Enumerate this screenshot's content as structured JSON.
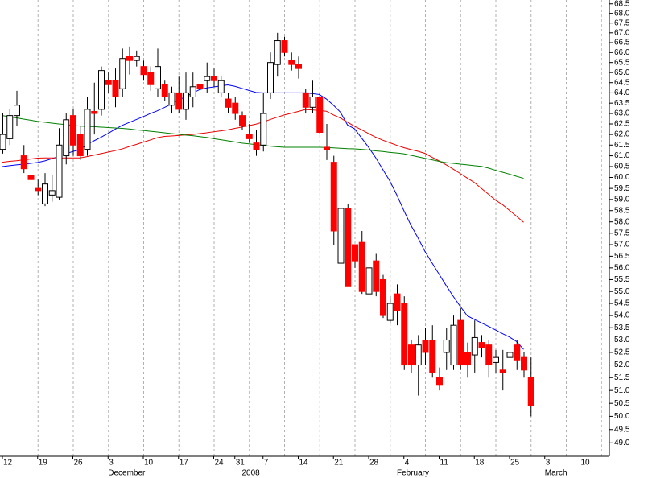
{
  "chart_data": {
    "type": "candlestick",
    "log_scale": true,
    "ylim": [
      48.5,
      68.7
    ],
    "yticks": [
      {
        "value": 49,
        "label": "49.0"
      },
      {
        "value": 49.5,
        "label": "49.5"
      },
      {
        "value": 50,
        "label": "50.0"
      },
      {
        "value": 50.5,
        "label": "50.5"
      },
      {
        "value": 51,
        "label": "51.0"
      },
      {
        "value": 51.5,
        "label": "51.5"
      },
      {
        "value": 52,
        "label": "52.0"
      },
      {
        "value": 52.5,
        "label": "52.5"
      },
      {
        "value": 53,
        "label": "53.0"
      },
      {
        "value": 53.5,
        "label": "53.5"
      },
      {
        "value": 54,
        "label": "54.0"
      },
      {
        "value": 54.5,
        "label": "54.5"
      },
      {
        "value": 55,
        "label": "55.0"
      },
      {
        "value": 55.5,
        "label": "55.5"
      },
      {
        "value": 56,
        "label": "56.0"
      },
      {
        "value": 56.5,
        "label": "56.5"
      },
      {
        "value": 57,
        "label": "57.0"
      },
      {
        "value": 57.5,
        "label": "57.5"
      },
      {
        "value": 58,
        "label": "58.0"
      },
      {
        "value": 58.5,
        "label": "58.5"
      },
      {
        "value": 59,
        "label": "59.0"
      },
      {
        "value": 59.5,
        "label": "59.5"
      },
      {
        "value": 60,
        "label": "60.0"
      },
      {
        "value": 60.5,
        "label": "60.5"
      },
      {
        "value": 61,
        "label": "61.0"
      },
      {
        "value": 61.5,
        "label": "61.5"
      },
      {
        "value": 62,
        "label": "62.0"
      },
      {
        "value": 62.5,
        "label": "62.5"
      },
      {
        "value": 63,
        "label": "63.0"
      },
      {
        "value": 63.5,
        "label": "63.5"
      },
      {
        "value": 64,
        "label": "64.0"
      },
      {
        "value": 64.5,
        "label": "64.5"
      },
      {
        "value": 65,
        "label": "65.0"
      },
      {
        "value": 65.5,
        "label": "65.5"
      },
      {
        "value": 66,
        "label": "66.0"
      },
      {
        "value": 66.5,
        "label": "66.5"
      },
      {
        "value": 67,
        "label": "67.0"
      },
      {
        "value": 67.5,
        "label": "67.5"
      },
      {
        "value": 68,
        "label": "68.0"
      },
      {
        "value": 68.5,
        "label": "68.5"
      }
    ],
    "categories": [
      "12",
      null,
      null,
      null,
      null,
      "19",
      null,
      null,
      null,
      null,
      "26",
      null,
      null,
      null,
      null,
      "3",
      null,
      null,
      null,
      null,
      "10",
      null,
      null,
      null,
      null,
      "17",
      null,
      null,
      null,
      null,
      "24",
      null,
      null,
      "31",
      null,
      null,
      null,
      "7",
      null,
      null,
      null,
      null,
      "14",
      null,
      null,
      null,
      null,
      "21",
      null,
      null,
      null,
      null,
      "28",
      null,
      null,
      null,
      null,
      "4",
      null,
      null,
      null,
      null,
      "11",
      null,
      null,
      null,
      null,
      "18",
      null,
      null,
      null,
      null,
      "25",
      null,
      null,
      null,
      null,
      "3",
      null,
      null,
      null,
      null,
      "10",
      null,
      null,
      null
    ],
    "month_categories": [
      null,
      null,
      null,
      null,
      null,
      null,
      null,
      null,
      null,
      null,
      null,
      null,
      null,
      null,
      null,
      "December",
      null,
      null,
      null,
      null,
      null,
      null,
      null,
      null,
      null,
      null,
      null,
      null,
      null,
      null,
      null,
      null,
      null,
      null,
      "2008",
      null,
      null,
      null,
      null,
      null,
      null,
      null,
      null,
      null,
      null,
      null,
      null,
      null,
      null,
      null,
      null,
      null,
      null,
      null,
      null,
      null,
      "February",
      null,
      null,
      null,
      null,
      null,
      null,
      null,
      null,
      null,
      null,
      null,
      null,
      null,
      null,
      null,
      null,
      null,
      null,
      null,
      null,
      "March",
      null,
      null,
      null,
      null,
      null,
      null,
      null,
      null
    ],
    "open": [
      61.3,
      61.8,
      62.9,
      61.0,
      60.1,
      59.5,
      58.8,
      59.2,
      59.1,
      61.0,
      62.9,
      62.0,
      61.3,
      63.1,
      63.2,
      64.6,
      64.6,
      64.2,
      65.8,
      65.6,
      65.3,
      65.0,
      64.2,
      64.4,
      63.4,
      64.0,
      63.2,
      63.8,
      64.4,
      64.6,
      64.8,
      64.0,
      63.7,
      63.5,
      62.9,
      62.0,
      61.6,
      61.5,
      64.0,
      65.4,
      66.6,
      65.6,
      65.4,
      64.0,
      63.3,
      63.8,
      61.4,
      60.7,
      56.2,
      58.6,
      57.0,
      57.1,
      54.9,
      56.3,
      55.5,
      53.8,
      54.9,
      54.5,
      52.8,
      52.0,
      53.0,
      53.0,
      51.5,
      52.5,
      52.0,
      53.8,
      52.5,
      52.4,
      52.9,
      52.8,
      52.1,
      51.8,
      52.3,
      52.8,
      52.3,
      51.5,
      null,
      null,
      null,
      null,
      null,
      null,
      null,
      null,
      null,
      null
    ],
    "high": [
      63.0,
      63.2,
      64.1,
      61.5,
      60.4,
      59.9,
      60.2,
      60.1,
      62.3,
      63.0,
      63.2,
      62.4,
      63.8,
      64.5,
      65.3,
      65.0,
      65.2,
      66.2,
      66.3,
      66.1,
      65.6,
      65.3,
      66.2,
      64.6,
      64.3,
      64.8,
      65.0,
      65.0,
      65.2,
      65.5,
      65.2,
      64.8,
      64.0,
      63.8,
      63.1,
      62.5,
      62.2,
      64.0,
      66.0,
      67.0,
      66.8,
      66.0,
      65.8,
      64.2,
      64.6,
      64.0,
      62.5,
      61.0,
      59.4,
      58.8,
      57.0,
      57.6,
      56.4,
      56.6,
      55.7,
      54.8,
      55.3,
      54.8,
      53.0,
      53.2,
      53.5,
      53.6,
      51.9,
      53.5,
      54.0,
      54.3,
      52.9,
      53.8,
      53.2,
      53.0,
      52.6,
      52.6,
      52.8,
      53.0,
      52.5,
      52.3,
      null,
      null,
      null,
      null,
      null,
      null,
      null,
      null,
      null,
      null
    ],
    "low": [
      61.1,
      61.5,
      62.4,
      60.2,
      59.6,
      59.2,
      58.7,
      58.9,
      59.0,
      60.6,
      61.0,
      60.8,
      61.0,
      62.0,
      62.9,
      64.0,
      63.3,
      63.8,
      64.9,
      65.3,
      64.6,
      64.1,
      63.8,
      63.6,
      63.0,
      63.0,
      62.7,
      63.3,
      63.3,
      64.0,
      64.3,
      63.8,
      63.0,
      62.7,
      62.2,
      61.6,
      61.0,
      61.2,
      63.7,
      64.8,
      65.8,
      65.1,
      64.7,
      63.0,
      63.0,
      62.0,
      60.8,
      57.0,
      55.3,
      55.2,
      56.0,
      54.9,
      54.5,
      54.8,
      53.9,
      53.7,
      53.6,
      51.8,
      51.7,
      50.8,
      52.0,
      51.5,
      51.0,
      51.8,
      51.8,
      51.8,
      51.5,
      51.7,
      52.3,
      51.5,
      51.7,
      51.0,
      51.9,
      51.8,
      51.5,
      50.0,
      null,
      null,
      null,
      null,
      null,
      null,
      null,
      null,
      null,
      null
    ],
    "close": [
      62.0,
      62.9,
      63.4,
      60.4,
      59.9,
      59.4,
      59.7,
      59.4,
      61.5,
      62.7,
      61.5,
      61.0,
      63.2,
      63.0,
      65.1,
      64.4,
      63.8,
      65.7,
      65.6,
      65.8,
      64.9,
      64.4,
      65.3,
      63.8,
      64.0,
      63.2,
      64.0,
      64.3,
      64.2,
      64.8,
      64.6,
      64.6,
      63.3,
      63.0,
      62.4,
      61.8,
      61.3,
      63.0,
      65.5,
      66.6,
      66.0,
      65.4,
      65.2,
      63.3,
      63.8,
      62.1,
      61.3,
      57.6,
      58.6,
      55.2,
      56.3,
      55.0,
      56.0,
      55.0,
      54.0,
      54.5,
      54.2,
      52.0,
      52.0,
      52.8,
      52.5,
      51.7,
      51.2,
      53.0,
      53.6,
      52.0,
      52.0,
      53.1,
      52.7,
      52.0,
      52.3,
      51.7,
      52.5,
      52.2,
      51.8,
      50.4,
      null,
      null,
      null,
      null,
      null,
      null,
      null,
      null,
      null,
      null
    ],
    "up_color": "#ffffff",
    "down_color": "#ff0000",
    "series": [
      {
        "color": "#0000ff",
        "values": [
          60.5,
          60.54,
          60.58,
          60.61,
          60.65,
          60.69,
          60.76,
          60.86,
          60.97,
          61.1,
          61.2,
          61.29,
          61.53,
          61.7,
          61.87,
          62.05,
          62.25,
          62.43,
          62.57,
          62.71,
          62.85,
          63.0,
          63.13,
          63.29,
          63.46,
          63.64,
          63.81,
          63.99,
          64.16,
          64.24,
          64.29,
          64.34,
          64.39,
          64.32,
          64.22,
          64.12,
          64.02,
          64.0,
          64.0,
          64.0,
          64.0,
          64.0,
          64.0,
          64.0,
          63.96,
          63.92,
          63.7,
          63.4,
          63.06,
          62.45,
          62.27,
          61.83,
          61.39,
          60.91,
          60.37,
          59.84,
          59.2,
          58.5,
          57.85,
          57.3,
          56.7,
          56.21,
          55.73,
          55.25,
          54.8,
          54.38,
          53.99,
          53.84,
          53.7,
          53.56,
          53.41,
          53.26,
          53.12,
          52.94,
          52.62,
          null,
          null,
          null,
          null,
          null,
          null,
          null,
          null,
          null,
          null,
          null
        ]
      },
      {
        "color": "#ee0000",
        "values": [
          60.7,
          60.74,
          60.77,
          60.81,
          60.85,
          60.89,
          60.9,
          60.9,
          60.9,
          60.9,
          60.9,
          60.9,
          60.96,
          61.03,
          61.1,
          61.17,
          61.24,
          61.32,
          61.43,
          61.53,
          61.64,
          61.74,
          61.85,
          61.91,
          61.93,
          61.95,
          61.98,
          62.0,
          62.04,
          62.08,
          62.13,
          62.17,
          62.22,
          62.29,
          62.35,
          62.42,
          62.49,
          62.59,
          62.71,
          62.82,
          62.93,
          63.01,
          63.1,
          63.19,
          63.17,
          63.14,
          63.11,
          62.93,
          62.78,
          62.58,
          62.39,
          62.22,
          62.04,
          61.87,
          61.73,
          61.61,
          61.49,
          61.38,
          61.29,
          61.21,
          61.11,
          60.93,
          60.76,
          60.58,
          60.38,
          60.18,
          59.97,
          59.77,
          59.5,
          59.24,
          58.97,
          58.77,
          58.51,
          58.25,
          57.98,
          null,
          null,
          null,
          null,
          null,
          null,
          null,
          null,
          null,
          null,
          null
        ]
      },
      {
        "color": "#008000",
        "values": [
          62.9,
          62.84,
          62.79,
          62.73,
          62.68,
          62.62,
          62.58,
          62.54,
          62.5,
          62.47,
          62.43,
          62.4,
          62.38,
          62.37,
          62.35,
          62.33,
          62.31,
          62.29,
          62.26,
          62.22,
          62.19,
          62.15,
          62.12,
          62.08,
          62.04,
          62.01,
          61.97,
          61.94,
          61.9,
          61.86,
          61.8,
          61.75,
          61.7,
          61.65,
          61.59,
          61.56,
          61.52,
          61.49,
          61.45,
          61.42,
          61.4,
          61.4,
          61.4,
          61.4,
          61.4,
          61.4,
          61.39,
          61.37,
          61.35,
          61.33,
          61.32,
          61.3,
          61.27,
          61.23,
          61.2,
          61.16,
          61.13,
          61.09,
          61.02,
          60.95,
          60.88,
          60.81,
          60.74,
          60.68,
          60.65,
          60.61,
          60.58,
          60.54,
          60.51,
          60.43,
          60.33,
          60.24,
          60.15,
          60.05,
          59.96,
          null,
          null,
          null,
          null,
          null,
          null,
          null,
          null,
          null,
          null,
          null
        ]
      }
    ],
    "hlines": [
      {
        "value": 64.0,
        "color": "#0000ff",
        "dashed": false
      },
      {
        "value": 51.7,
        "color": "#0000ff",
        "dashed": false
      },
      {
        "value": 67.75,
        "color": "#000000",
        "dashed": true
      }
    ],
    "xgrid": true,
    "xgrid_every": 5
  }
}
